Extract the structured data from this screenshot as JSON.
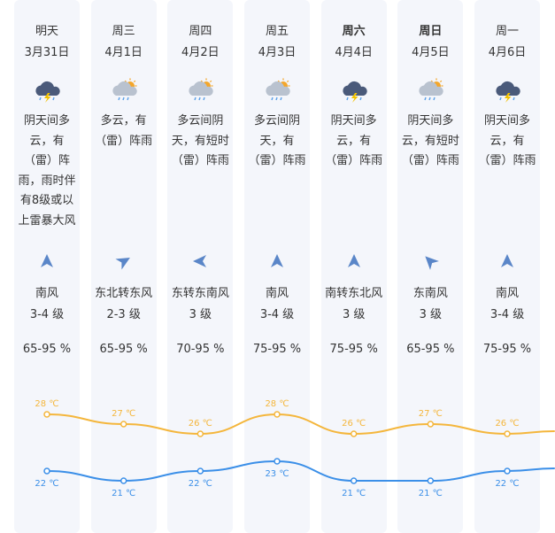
{
  "colors": {
    "high_line": "#f4b63c",
    "low_line": "#3b8fe8",
    "column_bg": "#f4f6fb",
    "thunder": "#f2c200"
  },
  "units": {
    "temp": "℃"
  },
  "days": [
    {
      "name": "明天",
      "bold": false,
      "date": "3月31日",
      "icon": "thunderstorm-icon",
      "desc_lines": [
        "阴天间多",
        "云，有",
        "（雷）阵",
        "雨，雨时伴",
        "有8级或以",
        "上雷暴大风"
      ],
      "wind_dir_deg": 0,
      "wind": "南风",
      "level": "3-4 级",
      "humidity": "65-95 %",
      "high": 28,
      "low": 22
    },
    {
      "name": "周三",
      "bold": false,
      "date": "4月1日",
      "icon": "sun-cloud-rain-icon",
      "desc_lines": [
        "多云，有",
        "（雷）阵雨"
      ],
      "wind_dir_deg": 60,
      "wind": "东北转东风",
      "level": "2-3 级",
      "humidity": "65-95 %",
      "high": 27,
      "low": 21
    },
    {
      "name": "周四",
      "bold": false,
      "date": "4月2日",
      "icon": "sun-cloud-rain-icon",
      "desc_lines": [
        "多云间阴",
        "天，有短时",
        "（雷）阵雨"
      ],
      "wind_dir_deg": 270,
      "wind": "东转东南风",
      "level": "3 级",
      "humidity": "70-95 %",
      "high": 26,
      "low": 22
    },
    {
      "name": "周五",
      "bold": false,
      "date": "4月3日",
      "icon": "sun-cloud-rain-icon",
      "desc_lines": [
        "多云间阴",
        "天，有",
        "（雷）阵雨"
      ],
      "wind_dir_deg": 0,
      "wind": "南风",
      "level": "3-4 级",
      "humidity": "75-95 %",
      "high": 28,
      "low": 23
    },
    {
      "name": "周六",
      "bold": true,
      "date": "4月4日",
      "icon": "thunderstorm-icon",
      "desc_lines": [
        "阴天间多",
        "云，有",
        "（雷）阵雨"
      ],
      "wind_dir_deg": 0,
      "wind": "南转东北风",
      "level": "3 级",
      "humidity": "75-95 %",
      "high": 26,
      "low": 21
    },
    {
      "name": "周日",
      "bold": true,
      "date": "4月5日",
      "icon": "sun-cloud-rain-icon",
      "desc_lines": [
        "阴天间多",
        "云，有短时",
        "（雷）阵雨"
      ],
      "wind_dir_deg": 315,
      "wind": "东南风",
      "level": "3 级",
      "humidity": "65-95 %",
      "high": 27,
      "low": 21
    },
    {
      "name": "周一",
      "bold": false,
      "date": "4月6日",
      "icon": "thunderstorm-icon",
      "desc_lines": [
        "阴天间多",
        "云，有",
        "（雷）阵雨"
      ],
      "wind_dir_deg": 0,
      "wind": "南风",
      "level": "3-4 级",
      "humidity": "75-95 %",
      "high": 26,
      "low": 22
    }
  ]
}
